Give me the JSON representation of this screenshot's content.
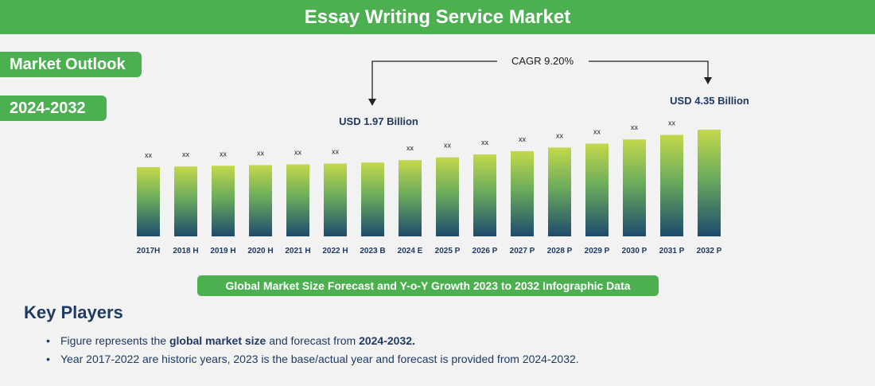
{
  "header": {
    "title": "Essay Writing Service Market"
  },
  "sidebar": {
    "outlook_label": "Market Outlook",
    "range_label": "2024-2032"
  },
  "chart_data": {
    "type": "bar",
    "categories": [
      "2017H",
      "2018 H",
      "2019 H",
      "2020 H",
      "2021 H",
      "2022 H",
      "2023 B",
      "2024 E",
      "2025 P",
      "2026 P",
      "2027 P",
      "2028 P",
      "2029 P",
      "2030 P",
      "2031 P",
      "2032 P"
    ],
    "values": [
      1.64,
      1.69,
      1.74,
      1.79,
      1.84,
      1.9,
      1.97,
      2.15,
      2.35,
      2.56,
      2.8,
      3.06,
      3.34,
      3.65,
      3.98,
      4.35
    ],
    "bar_labels": [
      "xx",
      "xx",
      "xx",
      "xx",
      "xx",
      "xx",
      "",
      "xx",
      "xx",
      "xx",
      "xx",
      "xx",
      "xx",
      "xx",
      "xx",
      ""
    ],
    "annotations": {
      "cagr": "CAGR 9.20%",
      "start_value": "USD 1.97 Billion",
      "end_value": "USD 4.35 Billion"
    },
    "ylim": [
      0,
      4.6
    ],
    "grid": false,
    "colors": {
      "bar_top": "#c3d84b",
      "bar_mid": "#6cac5c",
      "bar_bottom": "#1e4a6d"
    }
  },
  "caption": "Global Market Size Forecast and Y-o-Y Growth 2023 to 2032 Infographic Data",
  "key_players": {
    "title": "Key Players",
    "bullets": [
      {
        "pre": "Figure represents the ",
        "bold1": "global market size",
        "mid": " and forecast from ",
        "bold2": "2024-2032.",
        "post": ""
      },
      {
        "pre": "Year 2017-2022 are historic years, 2023 is the base/actual year and forecast is provided from 2024-2032.",
        "bold1": "",
        "mid": "",
        "bold2": "",
        "post": ""
      }
    ]
  },
  "colors": {
    "accent": "#4caf50",
    "navy": "#1f3a63",
    "background": "#f2f2f2"
  }
}
